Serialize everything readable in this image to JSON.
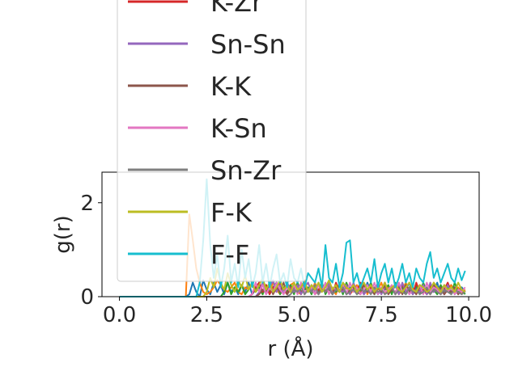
{
  "chart_data": {
    "type": "line",
    "xlabel": "r (Å)",
    "ylabel": "g(r)",
    "xlim": [
      -0.5,
      10.3
    ],
    "ylim": [
      0,
      2.65
    ],
    "xticks": [
      "0.0",
      "2.5",
      "5.0",
      "7.5",
      "10.0"
    ],
    "yticks": [
      "0",
      "2"
    ],
    "grid": false,
    "legend_placement": "upper-left (overflowing top)",
    "x": [
      0.0,
      0.1,
      0.2,
      0.3,
      0.4,
      0.5,
      0.6,
      0.7,
      0.8,
      0.9,
      1.0,
      1.1,
      1.2,
      1.3,
      1.4,
      1.5,
      1.6,
      1.7,
      1.8,
      1.9,
      2.0,
      2.1,
      2.2,
      2.3,
      2.4,
      2.5,
      2.6,
      2.7,
      2.8,
      2.9,
      3.0,
      3.1,
      3.2,
      3.3,
      3.4,
      3.5,
      3.6,
      3.7,
      3.8,
      3.9,
      4.0,
      4.1,
      4.2,
      4.3,
      4.4,
      4.5,
      4.6,
      4.7,
      4.8,
      4.9,
      5.0,
      5.1,
      5.2,
      5.3,
      5.4,
      5.5,
      5.6,
      5.7,
      5.8,
      5.9,
      6.0,
      6.1,
      6.2,
      6.3,
      6.4,
      6.5,
      6.6,
      6.7,
      6.8,
      6.9,
      7.0,
      7.1,
      7.2,
      7.3,
      7.4,
      7.5,
      7.6,
      7.7,
      7.8,
      7.9,
      8.0,
      8.1,
      8.2,
      8.3,
      8.4,
      8.5,
      8.6,
      8.7,
      8.8,
      8.9,
      9.0,
      9.1,
      9.2,
      9.3,
      9.4,
      9.5,
      9.6,
      9.7,
      9.8,
      9.9
    ],
    "series": [
      {
        "color": "#1f77b4",
        "values": [
          0,
          0,
          0,
          0,
          0,
          0,
          0,
          0,
          0,
          0,
          0,
          0,
          0,
          0,
          0,
          0,
          0,
          0,
          0,
          0,
          0.05,
          0.3,
          0.1,
          0,
          0.35,
          0.15,
          0.05,
          0.3,
          0.1,
          0.25,
          0.05,
          0.3,
          0.1,
          0.2,
          0.05,
          0.25,
          0.1,
          0.3,
          0.05,
          0.15,
          0.3,
          0.1,
          0.25,
          0.05,
          0.2,
          0.3,
          0.1,
          0.2,
          0.05,
          0.25,
          0.1,
          0.3,
          0.05,
          0.2,
          0.1,
          0.25,
          0.05,
          0.3,
          0.15,
          0.1,
          0.25,
          0.05,
          0.2,
          0.1,
          0.3,
          0.05,
          0.2,
          0.15,
          0.1,
          0.25,
          0.05,
          0.3,
          0.1,
          0.2,
          0.05,
          0.15,
          0.3,
          0.1,
          0.2,
          0.05,
          0.25,
          0.1,
          0.15,
          0.3,
          0.05,
          0.2,
          0.1,
          0.25,
          0.05,
          0.15,
          0.1,
          0.3,
          0.05,
          0.2,
          0.1,
          0.25,
          0.05,
          0.15,
          0.2,
          0.1
        ]
      },
      {
        "color": "#ff7f0e",
        "values": [
          0,
          0,
          0,
          0,
          0,
          0,
          0,
          0,
          0,
          0,
          0,
          0,
          0,
          0,
          0,
          0,
          0,
          0,
          0,
          0,
          1.75,
          1.2,
          0.6,
          0.3,
          0.1,
          0.05,
          0.1,
          0.2,
          0.35,
          0.25,
          0.15,
          0.1,
          0.2,
          0.3,
          0.1,
          0.05,
          0.2,
          0.15,
          0.3,
          0.1,
          0.2,
          0.05,
          0.25,
          0.1,
          0.3,
          0.15,
          0.05,
          0.2,
          0.1,
          0.25,
          0.3,
          0.1,
          0.05,
          0.2,
          0.15,
          0.1,
          0.3,
          0.05,
          0.2,
          0.1,
          0.25,
          0.15,
          0.05,
          0.3,
          0.1,
          0.2,
          0.05,
          0.15,
          0.25,
          0.1,
          0.3,
          0.05,
          0.2,
          0.1,
          0.15,
          0.3,
          0.05,
          0.2,
          0.1,
          0.25,
          0.05,
          0.15,
          0.3,
          0.1,
          0.2,
          0.05,
          0.25,
          0.1,
          0.15,
          0.05,
          0.3,
          0.1,
          0.2,
          0.05,
          0.15,
          0.25,
          0.1,
          0.2,
          0.05,
          0.15
        ]
      },
      {
        "color": "#2ca02c",
        "values": [
          0,
          0,
          0,
          0,
          0,
          0,
          0,
          0,
          0,
          0,
          0,
          0,
          0,
          0,
          0,
          0,
          0,
          0,
          0,
          0,
          0,
          0,
          0,
          0,
          0,
          0,
          0,
          0,
          0,
          0,
          0.1,
          0.3,
          0.05,
          0.2,
          0.1,
          0.25,
          0.05,
          0.15,
          0.3,
          0.1,
          0.2,
          0.05,
          0.25,
          0.1,
          0.15,
          0.3,
          0.05,
          0.2,
          0.1,
          0.25,
          0.05,
          0.3,
          0.1,
          0.15,
          0.2,
          0.05,
          0.25,
          0.1,
          0.3,
          0.05,
          0.2,
          0.15,
          0.1,
          0.25,
          0.05,
          0.3,
          0.1,
          0.2,
          0.05,
          0.15,
          0.25,
          0.1,
          0.3,
          0.05,
          0.2,
          0.1,
          0.15,
          0.25,
          0.05,
          0.3,
          0.1,
          0.2,
          0.05,
          0.15,
          0.1,
          0.25,
          0.05,
          0.3,
          0.1,
          0.2,
          0.15,
          0.05,
          0.25,
          0.1,
          0.2,
          0.05,
          0.3,
          0.1,
          0.15,
          0.05
        ]
      },
      {
        "name": "K-Zr",
        "color": "#d62728",
        "values": [
          0,
          0,
          0,
          0,
          0,
          0,
          0,
          0,
          0,
          0,
          0,
          0,
          0,
          0,
          0,
          0,
          0,
          0,
          0,
          0,
          0,
          0,
          0,
          0,
          0,
          0,
          0,
          0,
          0,
          0,
          0,
          0,
          0,
          0,
          0,
          0,
          0,
          0,
          0.05,
          0.2,
          0.3,
          0.1,
          0.25,
          0.05,
          0.2,
          0.1,
          0.3,
          0.15,
          0.05,
          0.2,
          0.1,
          0.25,
          0.05,
          0.3,
          0.1,
          0.2,
          0.05,
          0.15,
          0.25,
          0.1,
          0.2,
          0.05,
          0.3,
          0.1,
          0.15,
          0.25,
          0.05,
          0.2,
          0.1,
          0.3,
          0.05,
          0.15,
          0.2,
          0.1,
          0.25,
          0.05,
          0.3,
          0.1,
          0.2,
          0.05,
          0.15,
          0.25,
          0.1,
          0.2,
          0.05,
          0.3,
          0.1,
          0.15,
          0.05,
          0.25,
          0.1,
          0.2,
          0.05,
          0.15,
          0.3,
          0.1,
          0.2,
          0.05,
          0.15,
          0.1
        ]
      },
      {
        "name": "Sn-Sn",
        "color": "#9467bd",
        "values": [
          0,
          0,
          0,
          0,
          0,
          0,
          0,
          0,
          0,
          0,
          0,
          0,
          0,
          0,
          0,
          0,
          0,
          0,
          0,
          0,
          0,
          0,
          0,
          0,
          0,
          0,
          0,
          0,
          0,
          0,
          0,
          0,
          0,
          0,
          0,
          0,
          0,
          0,
          0,
          0,
          0.1,
          0.3,
          0.05,
          0.2,
          0.35,
          0.1,
          0.25,
          0.05,
          0.3,
          0.15,
          0.1,
          0.25,
          0.05,
          0.2,
          0.3,
          0.1,
          0.15,
          0.05,
          0.25,
          0.1,
          0.3,
          0.05,
          0.2,
          0.15,
          0.1,
          0.25,
          0.05,
          0.3,
          0.1,
          0.2,
          0.05,
          0.15,
          0.25,
          0.1,
          0.3,
          0.05,
          0.2,
          0.1,
          0.15,
          0.25,
          0.05,
          0.3,
          0.1,
          0.2,
          0.05,
          0.15,
          0.1,
          0.25,
          0.05,
          0.3,
          0.1,
          0.2,
          0.15,
          0.05,
          0.25,
          0.1,
          0.2,
          0.05,
          0.15,
          0.1
        ]
      },
      {
        "name": "K-K",
        "color": "#8c564b",
        "values": [
          0,
          0,
          0,
          0,
          0,
          0,
          0,
          0,
          0,
          0,
          0,
          0,
          0,
          0,
          0,
          0,
          0,
          0,
          0,
          0,
          0,
          0,
          0,
          0,
          0,
          0,
          0,
          0,
          0,
          0,
          0,
          0,
          0,
          0,
          0,
          0,
          0,
          0,
          0,
          0,
          0.05,
          0.15,
          0.1,
          0.25,
          0.05,
          0.2,
          0.1,
          0.3,
          0.05,
          0.15,
          0.2,
          0.1,
          0.25,
          0.05,
          0.15,
          0.1,
          0.2,
          0.05,
          0.25,
          0.1,
          0.15,
          0.05,
          0.2,
          0.1,
          0.25,
          0.05,
          0.15,
          0.2,
          0.1,
          0.05,
          0.25,
          0.1,
          0.15,
          0.05,
          0.2,
          0.1,
          0.25,
          0.05,
          0.15,
          0.1,
          0.2,
          0.05,
          0.25,
          0.1,
          0.15,
          0.05,
          0.2,
          0.1,
          0.15,
          0.05,
          0.25,
          0.1,
          0.2,
          0.05,
          0.15,
          0.1,
          0.2,
          0.05,
          0.15,
          0.1
        ]
      },
      {
        "name": "K-Sn",
        "color": "#e377c2",
        "values": [
          0,
          0,
          0,
          0,
          0,
          0,
          0,
          0,
          0,
          0,
          0,
          0,
          0,
          0,
          0,
          0,
          0,
          0,
          0,
          0,
          0,
          0,
          0,
          0,
          0,
          0,
          0,
          0,
          0,
          0,
          0,
          0,
          0,
          0,
          0,
          0,
          0,
          0,
          0.05,
          0.3,
          0.1,
          0.25,
          0.05,
          0.2,
          0.1,
          0.3,
          0.15,
          0.05,
          0.2,
          0.1,
          0.25,
          0.05,
          0.3,
          0.1,
          0.15,
          0.2,
          0.05,
          0.25,
          0.1,
          0.3,
          0.05,
          0.2,
          0.15,
          0.1,
          0.25,
          0.05,
          0.3,
          0.1,
          0.2,
          0.05,
          0.15,
          0.25,
          0.1,
          0.3,
          0.05,
          0.2,
          0.1,
          0.15,
          0.25,
          0.05,
          0.3,
          0.1,
          0.2,
          0.05,
          0.15,
          0.1,
          0.25,
          0.05,
          0.3,
          0.1,
          0.2,
          0.15,
          0.05,
          0.25,
          0.1,
          0.2,
          0.05,
          0.15,
          0.1,
          0.2
        ]
      },
      {
        "name": "Sn-Zr",
        "color": "#7f7f7f",
        "values": [
          0,
          0,
          0,
          0,
          0,
          0,
          0,
          0,
          0,
          0,
          0,
          0,
          0,
          0,
          0,
          0,
          0,
          0,
          0,
          0,
          0,
          0,
          0,
          0,
          0,
          0,
          0,
          0,
          0,
          0,
          0,
          0,
          0,
          0,
          0,
          0,
          0,
          0,
          0,
          0,
          0,
          0,
          0,
          0,
          0,
          0,
          0,
          0,
          0,
          0.05,
          0.15,
          0.1,
          0.2,
          0.05,
          0.15,
          0.1,
          0.25,
          0.05,
          0.15,
          0.1,
          0.2,
          0.05,
          0.15,
          0.1,
          0.2,
          0.05,
          0.1,
          0.15,
          0.05,
          0.2,
          0.1,
          0.15,
          0.05,
          0.2,
          0.1,
          0.15,
          0.05,
          0.1,
          0.2,
          0.05,
          0.15,
          0.1,
          0.05,
          0.2,
          0.1,
          0.15,
          0.05,
          0.1,
          0.2,
          0.05,
          0.15,
          0.1,
          0.05,
          0.15,
          0.1,
          0.05,
          0.15,
          0.1,
          0.05,
          0.1
        ]
      },
      {
        "name": "F-K",
        "color": "#bcbd22",
        "values": [
          0,
          0,
          0,
          0,
          0,
          0,
          0,
          0,
          0,
          0,
          0,
          0,
          0,
          0,
          0,
          0,
          0,
          0,
          0,
          0,
          0,
          0,
          0,
          0,
          0,
          0.1,
          0.4,
          0.2,
          0.6,
          0.3,
          0.15,
          0.5,
          0.25,
          0.1,
          0.35,
          0.2,
          0.45,
          0.15,
          0.3,
          0.1,
          0.25,
          0.4,
          0.15,
          0.3,
          0.1,
          0.2,
          0.35,
          0.15,
          0.25,
          0.1,
          0.3,
          0.15,
          0.2,
          0.35,
          0.1,
          0.25,
          0.15,
          0.3,
          0.1,
          0.2,
          0.35,
          0.15,
          0.25,
          0.1,
          0.3,
          0.2,
          0.15,
          0.25,
          0.1,
          0.2,
          0.3,
          0.15,
          0.25,
          0.1,
          0.2,
          0.15,
          0.3,
          0.1,
          0.2,
          0.25,
          0.15,
          0.1,
          0.2,
          0.3,
          0.15,
          0.1,
          0.25,
          0.2,
          0.1,
          0.15,
          0.3,
          0.2,
          0.1,
          0.25,
          0.15,
          0.2,
          0.1,
          0.3,
          0.15,
          0.1
        ]
      },
      {
        "name": "F-F",
        "color": "#17becf",
        "values": [
          0,
          0,
          0,
          0,
          0,
          0,
          0,
          0,
          0,
          0,
          0,
          0,
          0,
          0,
          0,
          0,
          0,
          0,
          0,
          0,
          0,
          0,
          0,
          0.3,
          1.2,
          2.5,
          1.1,
          0.4,
          0.9,
          0.2,
          0.6,
          1.3,
          0.3,
          0.7,
          0.2,
          1.0,
          0.4,
          0.8,
          0.2,
          0.5,
          1.1,
          0.3,
          0.7,
          0.2,
          0.6,
          0.9,
          0.3,
          0.5,
          0.2,
          0.8,
          0.4,
          0.3,
          0.6,
          0.2,
          0.5,
          0.4,
          0.3,
          0.6,
          0.2,
          1.1,
          0.4,
          0.3,
          0.7,
          0.2,
          0.5,
          1.15,
          1.2,
          0.3,
          0.5,
          0.2,
          0.4,
          0.6,
          0.3,
          0.8,
          0.2,
          0.5,
          0.7,
          0.3,
          0.6,
          0.2,
          0.4,
          0.7,
          0.3,
          0.5,
          0.2,
          0.6,
          0.4,
          0.3,
          0.7,
          0.95,
          0.4,
          0.6,
          0.3,
          0.5,
          0.7,
          0.4,
          0.3,
          0.6,
          0.35,
          0.55
        ]
      }
    ]
  }
}
